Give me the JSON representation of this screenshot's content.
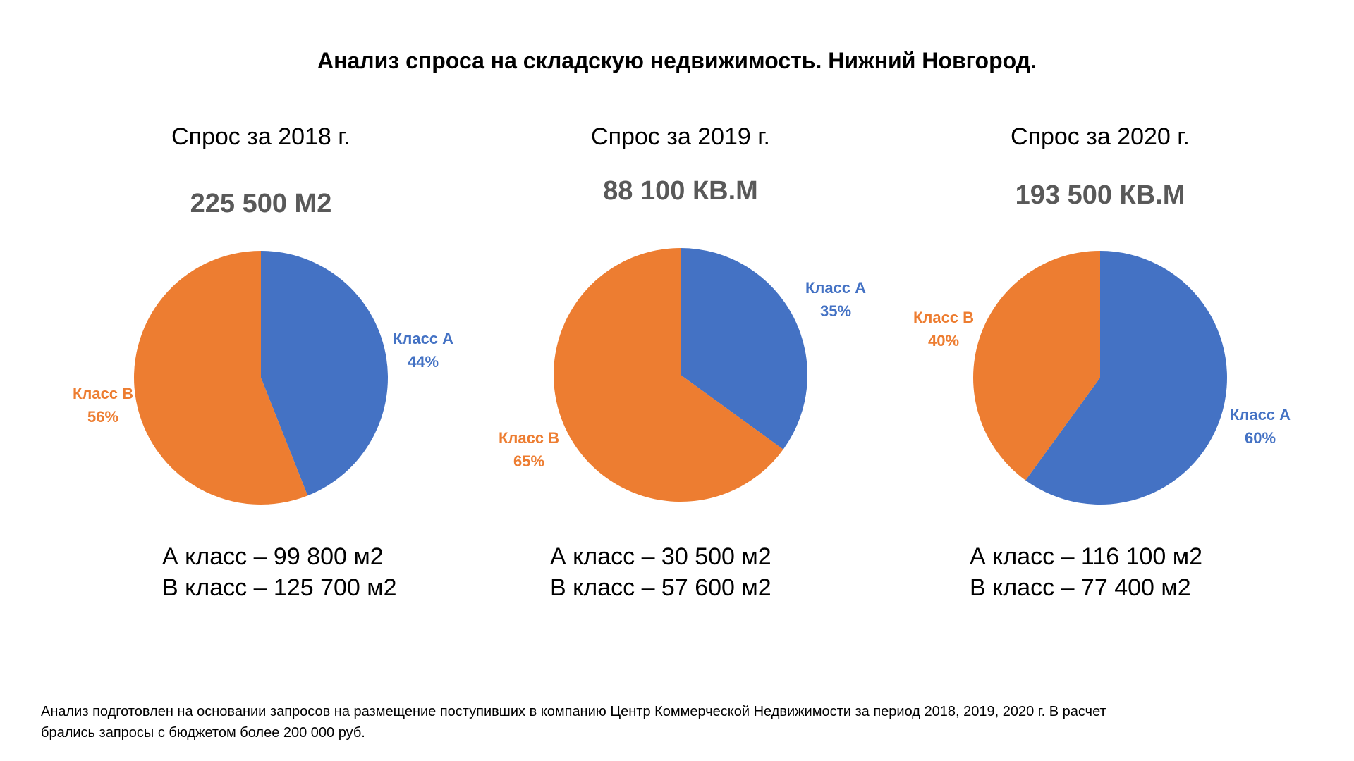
{
  "title": "Анализ спроса на складскую недвижимость. Нижний Новгород.",
  "colors": {
    "class_a": "#4472C4",
    "class_b": "#ED7D31",
    "total_text": "#595959"
  },
  "chart_data": [
    {
      "type": "pie",
      "title": "Спрос за 2018 г.",
      "total": "225 500 М2",
      "categories": [
        "Класс А",
        "Класс В"
      ],
      "values": [
        44,
        56
      ],
      "labels": [
        "44%",
        "56%"
      ],
      "lines": [
        "А класс – 99 800 м2",
        "В класс – 125 700 м2"
      ]
    },
    {
      "type": "pie",
      "title": "Спрос за 2019 г.",
      "total": "88 100 КВ.М",
      "categories": [
        "Класс А",
        "Класс В"
      ],
      "values": [
        35,
        65
      ],
      "labels": [
        "35%",
        "65%"
      ],
      "lines": [
        "А класс – 30 500 м2",
        "В класс – 57 600 м2"
      ]
    },
    {
      "type": "pie",
      "title": "Спрос за 2020 г.",
      "total": "193 500 КВ.М",
      "categories": [
        "Класс А",
        "Класс В"
      ],
      "values": [
        60,
        40
      ],
      "labels": [
        "60%",
        "40%"
      ],
      "lines": [
        "А класс – 116 100 м2",
        "В класс – 77 400 м2"
      ]
    }
  ],
  "footnote": {
    "line1": "Анализ подготовлен на основании запросов на размещение поступивших в компанию Центр Коммерческой Недвижимости за период 2018, 2019, 2020 г.  В расчет",
    "line2": "брались запросы с бюджетом более 200 000 руб."
  }
}
